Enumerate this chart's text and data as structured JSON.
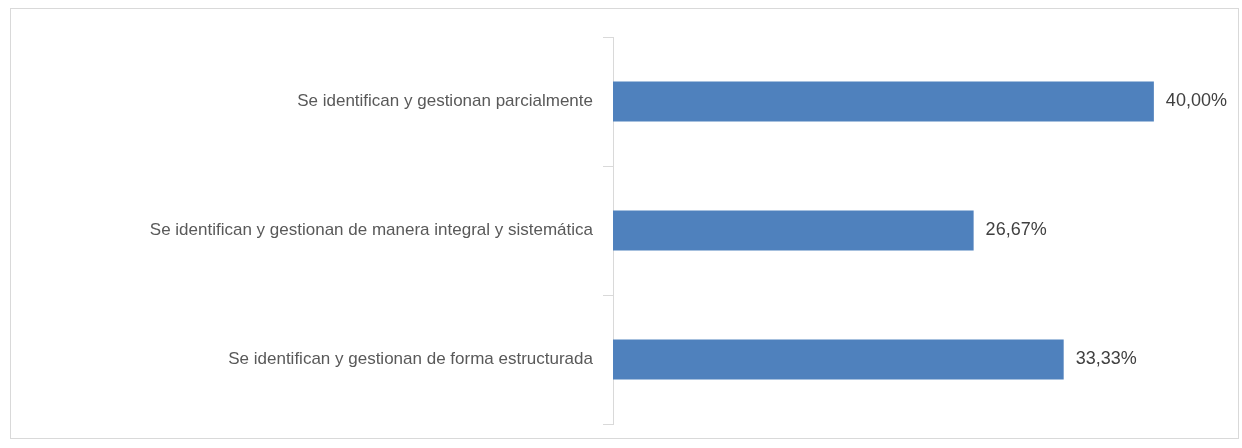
{
  "chart_data": {
    "type": "bar",
    "orientation": "horizontal",
    "categories": [
      "Se identifican y gestionan parcialmente",
      "Se identifican y gestionan de manera integral y sistemática",
      "Se identifican y gestionan de forma estructurada"
    ],
    "values": [
      40,
      26.67,
      33.33
    ],
    "value_labels": [
      "40,00%",
      "26,67%",
      "33,33%"
    ],
    "color": "#4f81bd",
    "xlim": [
      0,
      46
    ],
    "tick_labels": "y"
  }
}
